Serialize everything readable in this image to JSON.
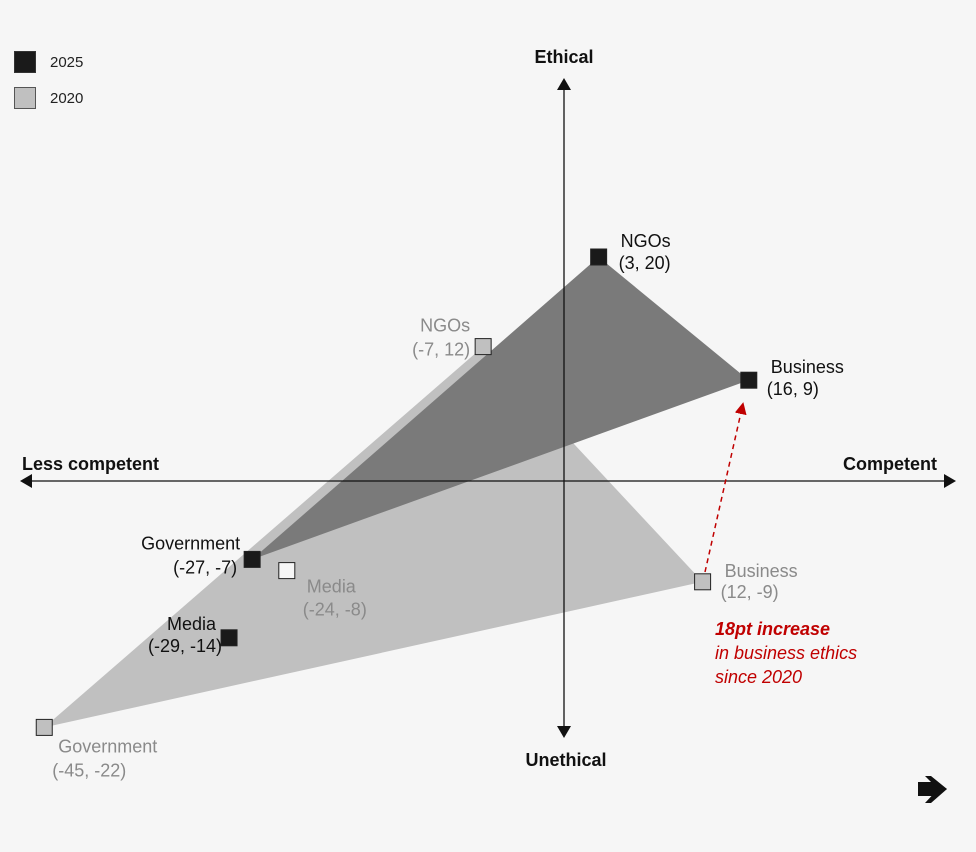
{
  "chart_data": {
    "type": "scatter",
    "xlabel_negative": "Less competent",
    "xlabel_positive": "Competent",
    "ylabel_positive": "Ethical",
    "ylabel_negative": "Unethical",
    "legend": [
      {
        "name": "2025",
        "color": "#1a1a1a"
      },
      {
        "name": "2020",
        "color": "#c0c0c0"
      }
    ],
    "series": [
      {
        "name": "2020",
        "marker_fill": "#c0c0c0",
        "label_color": "#8a8a8a",
        "fill_color": "#c0c0c0",
        "points": [
          {
            "label": "NGOs",
            "x": -7,
            "y": 12,
            "coord_text": "(-7, 12)"
          },
          {
            "label": "Business",
            "x": 12,
            "y": -9,
            "coord_text": "(12, -9)"
          },
          {
            "label": "Government",
            "x": -45,
            "y": -22,
            "coord_text": "(-45, -22)"
          },
          {
            "label": "Media",
            "x": -24,
            "y": -8,
            "coord_text": "(-24, -8)"
          }
        ]
      },
      {
        "name": "2025",
        "marker_fill": "#1a1a1a",
        "label_color": "#111111",
        "fill_color": "#7a7a7a",
        "points": [
          {
            "label": "NGOs",
            "x": 3,
            "y": 20,
            "coord_text": "(3, 20)"
          },
          {
            "label": "Business",
            "x": 16,
            "y": 9,
            "coord_text": "(16, 9)"
          },
          {
            "label": "Government",
            "x": -27,
            "y": -7,
            "coord_text": "(-27, -7)"
          },
          {
            "label": "Media",
            "x": -29,
            "y": -14,
            "coord_text": "(-29, -14)"
          }
        ]
      }
    ],
    "annotation": {
      "line1": "18pt increase",
      "line2": "in business ethics",
      "line3": "since 2020",
      "color": "#c00000"
    }
  },
  "logo": {
    "icon": "arrow-logo-icon"
  }
}
